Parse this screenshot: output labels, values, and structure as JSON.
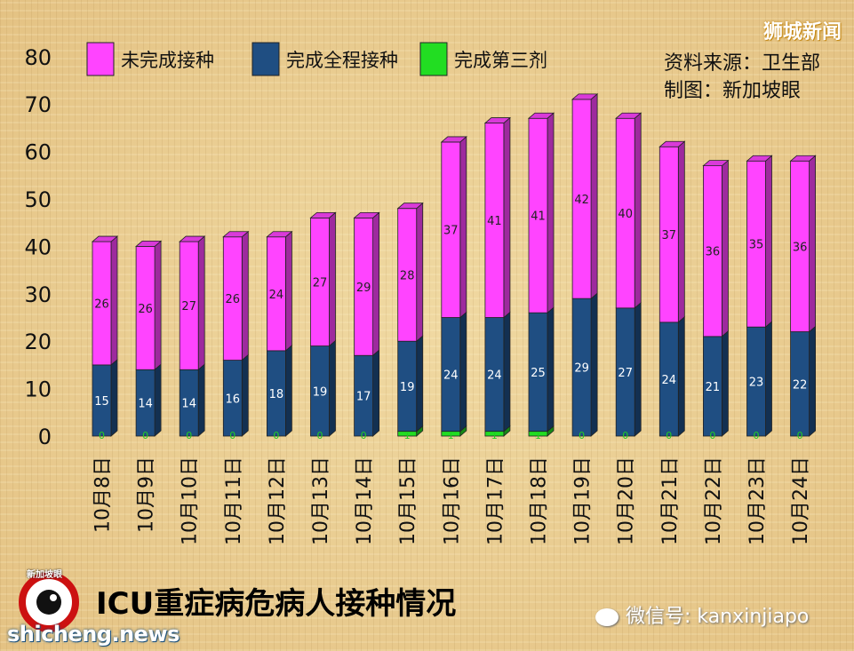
{
  "header": {
    "brand": "狮城新闻",
    "source_line": "资料来源：卫生部",
    "made_by_line": "制图：新加坡眼"
  },
  "footer": {
    "title": "ICU重症病危病人接种情况",
    "wechat": "微信号: kanxinjiapo",
    "site": "shicheng.news",
    "logo_text": "新加坡眼"
  },
  "colors": {
    "unvaccinated": "#ff44ff",
    "full": "#1f4e82",
    "booster": "#22dd22"
  },
  "chart_data": {
    "type": "bar",
    "stacked": true,
    "title": "ICU重症病危病人接种情况",
    "legend_position": "top-left",
    "ylim": [
      0,
      80
    ],
    "yticks": [
      0,
      10,
      20,
      30,
      40,
      50,
      60,
      70,
      80
    ],
    "categories": [
      "10月8日",
      "10月9日",
      "10月10日",
      "10月11日",
      "10月12日",
      "10月13日",
      "10月14日",
      "10月15日",
      "10月16日",
      "10月17日",
      "10月18日",
      "10月19日",
      "10月20日",
      "10月21日",
      "10月22日",
      "10月23日",
      "10月24日"
    ],
    "series": [
      {
        "name": "完成第三剂",
        "key": "booster",
        "values": [
          0,
          0,
          0,
          0,
          0,
          0,
          0,
          1,
          1,
          1,
          1,
          0,
          0,
          0,
          0,
          0,
          0
        ]
      },
      {
        "name": "完成全程接种",
        "key": "full",
        "values": [
          15,
          14,
          14,
          16,
          18,
          19,
          17,
          19,
          24,
          24,
          25,
          29,
          27,
          24,
          21,
          23,
          22
        ]
      },
      {
        "name": "未完成接种",
        "key": "unvaccinated",
        "values": [
          26,
          26,
          27,
          26,
          24,
          27,
          29,
          28,
          37,
          41,
          41,
          42,
          40,
          37,
          36,
          35,
          36
        ]
      }
    ],
    "legend_order": [
      "unvaccinated",
      "full",
      "booster"
    ]
  }
}
